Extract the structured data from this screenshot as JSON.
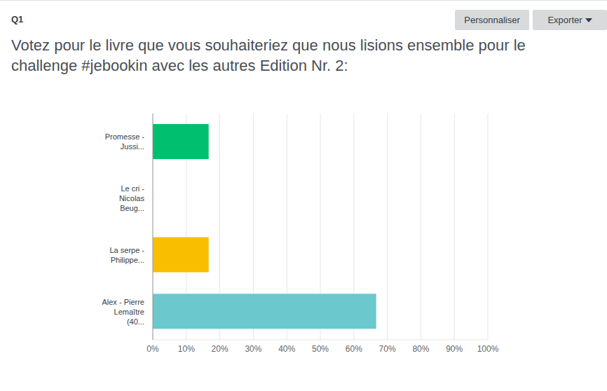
{
  "header": {
    "question": "Q1",
    "buttons": [
      "Personnaliser",
      "Exporter"
    ]
  },
  "chart_data": {
    "type": "bar",
    "orientation": "horizontal",
    "title": "Votez pour le livre que vous souhaiteriez que nous lisions ensemble pour le challenge #jebookin avec les autres Edition Nr. 2:",
    "categories": [
      "Promesse - Jussi...",
      "Le cri - Nicolas Beug...",
      "La serpe - Philippe...",
      "Alex - Pierre Lemaître (40..."
    ],
    "values": [
      16.67,
      0,
      16.67,
      66.67
    ],
    "colors": [
      "#00bf6f",
      "#507cb6",
      "#f9be00",
      "#6bc8cd"
    ],
    "xlim": [
      0,
      100
    ],
    "xticks": [
      {
        "value": 0,
        "label": "0%"
      },
      {
        "value": 10,
        "label": "10%"
      },
      {
        "value": 20,
        "label": "20%"
      },
      {
        "value": 30,
        "label": "30%"
      },
      {
        "value": 40,
        "label": "40%"
      },
      {
        "value": 50,
        "label": "50%"
      },
      {
        "value": 60,
        "label": "60%"
      },
      {
        "value": 70,
        "label": "70%"
      },
      {
        "value": 80,
        "label": "80%"
      },
      {
        "value": 90,
        "label": "90%"
      },
      {
        "value": 100,
        "label": "100%"
      }
    ],
    "grid": true
  }
}
